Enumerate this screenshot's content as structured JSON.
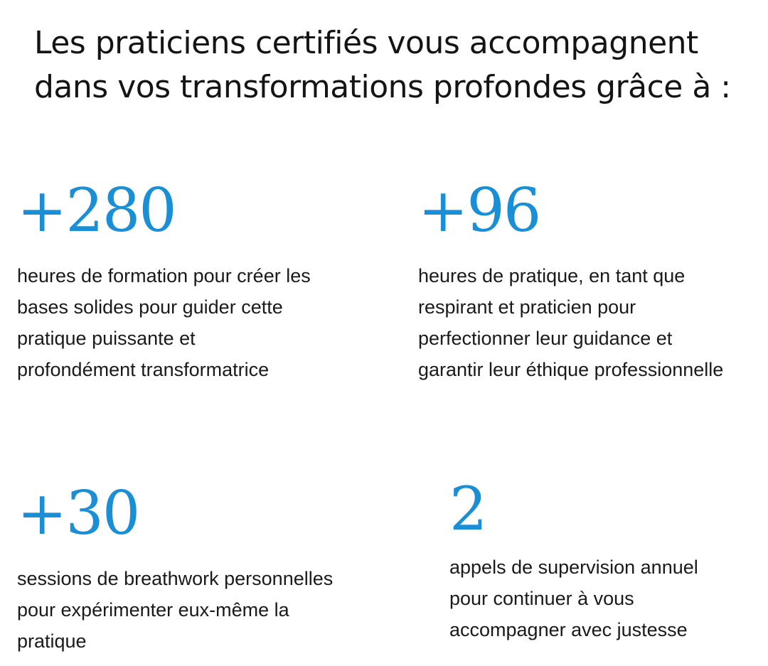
{
  "headline": {
    "line1": "Les praticiens certifiés vous accompagnent",
    "line2": "dans vos transformations profondes grâce à :"
  },
  "stats": [
    {
      "number": "+280",
      "lines": [
        "heures de formation pour créer les",
        "bases solides pour guider cette",
        "pratique puissante et",
        "profondément transformatrice"
      ]
    },
    {
      "number": "+96",
      "lines": [
        "heures de pratique, en tant que",
        "respirant et praticien pour",
        "perfectionner leur guidance et",
        "garantir leur éthique professionnelle"
      ]
    },
    {
      "number": "+30",
      "lines": [
        "sessions de breathwork personnelles",
        "pour expérimenter eux-même la",
        "pratique"
      ]
    },
    {
      "number": "2",
      "lines": [
        "appels de supervision annuel",
        "pour continuer à vous",
        "accompagner avec justesse"
      ]
    }
  ],
  "colors": {
    "accent": "#1a8fd6",
    "text": "#141414"
  }
}
